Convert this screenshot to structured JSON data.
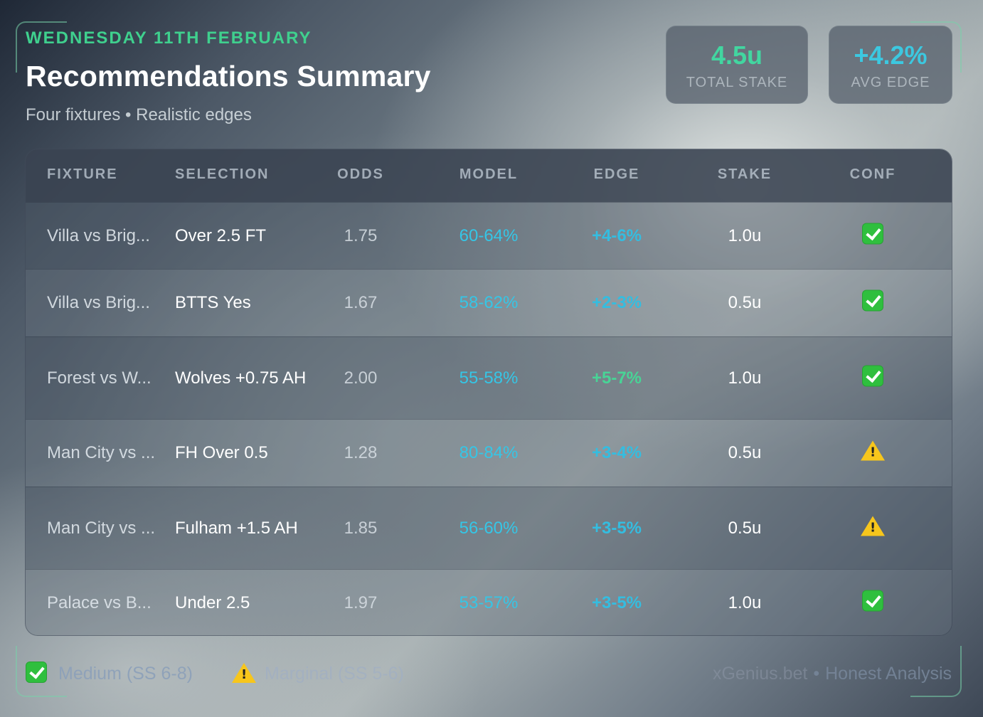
{
  "header": {
    "date": "WEDNESDAY 11TH FEBRUARY",
    "title": "Recommendations Summary",
    "subtitle": "Four fixtures • Realistic edges"
  },
  "stats": [
    {
      "value": "4.5u",
      "label": "TOTAL STAKE",
      "color": "#42d6a0"
    },
    {
      "value": "+4.2%",
      "label": "AVG EDGE",
      "color": "#3cc8e0"
    }
  ],
  "table": {
    "columns": [
      "FIXTURE",
      "SELECTION",
      "ODDS",
      "MODEL",
      "EDGE",
      "STAKE",
      "CONF"
    ],
    "rows": [
      {
        "fixture": "Villa vs Brig...",
        "selection": "Over 2.5 FT",
        "odds": "1.75",
        "model": "60-64%",
        "edge": "+4-6%",
        "stake": "1.0u",
        "conf": "check-icon"
      },
      {
        "fixture": "Villa vs Brig...",
        "selection": "BTTS Yes",
        "odds": "1.67",
        "model": "58-62%",
        "edge": "+2-3%",
        "stake": "0.5u",
        "conf": "check-icon"
      },
      {
        "fixture": "Forest vs W...",
        "selection": "Wolves +0.75 AH",
        "odds": "2.00",
        "model": "55-58%",
        "edge": "+5-7%",
        "stake": "1.0u",
        "conf": "check-icon"
      },
      {
        "fixture": "Man City vs ...",
        "selection": "FH Over 0.5",
        "odds": "1.28",
        "model": "80-84%",
        "edge": "+3-4%",
        "stake": "0.5u",
        "conf": "warning-icon"
      },
      {
        "fixture": "Man City vs ...",
        "selection": "Fulham +1.5 AH",
        "odds": "1.85",
        "model": "56-60%",
        "edge": "+3-5%",
        "stake": "0.5u",
        "conf": "warning-icon"
      },
      {
        "fixture": "Palace vs B...",
        "selection": "Under 2.5",
        "odds": "1.97",
        "model": "53-57%",
        "edge": "+3-5%",
        "stake": "1.0u",
        "conf": "check-icon"
      }
    ]
  },
  "legend": [
    {
      "icon": "check-icon",
      "label": "Medium (SS 6-8)"
    },
    {
      "icon": "warning-icon",
      "label": "Marginal (SS 5-6)"
    }
  ],
  "footer": {
    "brand": "xGenius.bet",
    "separator": "•",
    "tagline": "Honest Analysis"
  },
  "colors": {
    "accent_green": "#3fd08e",
    "accent_cyan": "#35c6e6",
    "edge_green": "#48d496"
  }
}
